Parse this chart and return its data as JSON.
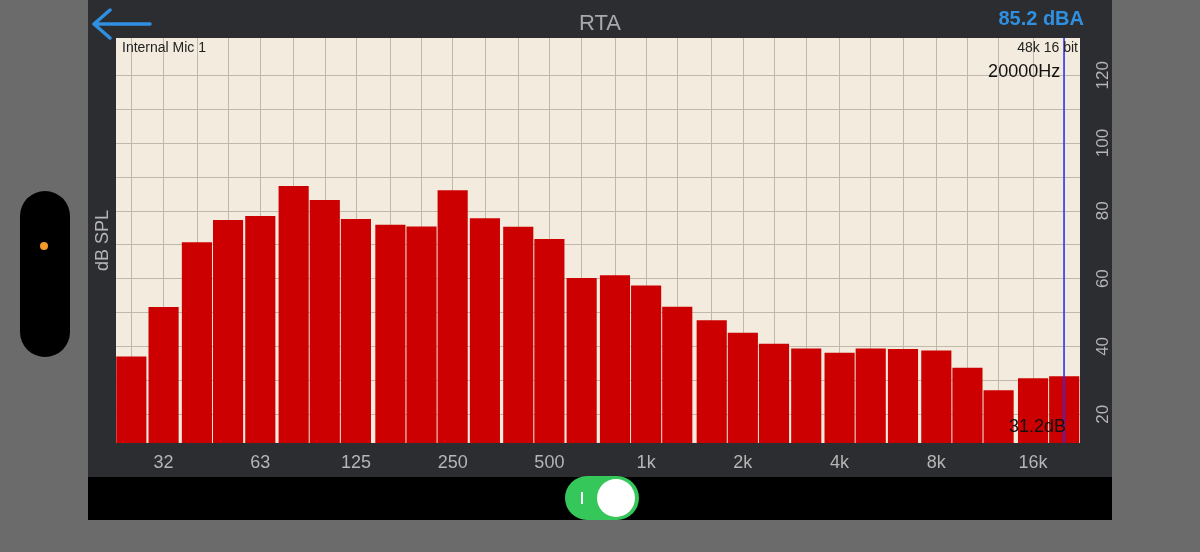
{
  "chart_data": {
    "type": "bar",
    "title": "RTA",
    "ylabel": "dB SPL",
    "x": [
      25,
      31.5,
      40,
      50,
      63,
      80,
      100,
      125,
      160,
      200,
      250,
      315,
      400,
      500,
      630,
      800,
      1000,
      1250,
      1600,
      2000,
      2500,
      3150,
      4000,
      5000,
      6300,
      8000,
      10000,
      12500,
      16000,
      20000
    ],
    "values": [
      37.0,
      51.6,
      70.7,
      77.3,
      78.5,
      87.3,
      83.2,
      77.6,
      75.9,
      75.4,
      86.1,
      77.8,
      75.3,
      71.7,
      60.2,
      61.0,
      58.0,
      51.7,
      47.7,
      44.0,
      40.8,
      39.4,
      38.1,
      39.4,
      39.2,
      38.8,
      33.7,
      27.1,
      30.6,
      31.2
    ],
    "color": "#cc0000",
    "log": "x",
    "xlim": [
      22.4,
      22400
    ],
    "xticks": [
      {
        "value": 25,
        "label": null
      },
      {
        "value": 31.5,
        "label": "32"
      },
      {
        "value": 40,
        "label": null
      },
      {
        "value": 50,
        "label": null
      },
      {
        "value": 63,
        "label": "63"
      },
      {
        "value": 80,
        "label": null
      },
      {
        "value": 100,
        "label": null
      },
      {
        "value": 125,
        "label": "125"
      },
      {
        "value": 160,
        "label": null
      },
      {
        "value": 200,
        "label": null
      },
      {
        "value": 250,
        "label": "250"
      },
      {
        "value": 315,
        "label": null
      },
      {
        "value": 400,
        "label": null
      },
      {
        "value": 500,
        "label": "500"
      },
      {
        "value": 630,
        "label": null
      },
      {
        "value": 800,
        "label": null
      },
      {
        "value": 1000,
        "label": "1k"
      },
      {
        "value": 1250,
        "label": null
      },
      {
        "value": 1600,
        "label": null
      },
      {
        "value": 2000,
        "label": "2k"
      },
      {
        "value": 2500,
        "label": null
      },
      {
        "value": 3150,
        "label": null
      },
      {
        "value": 4000,
        "label": "4k"
      },
      {
        "value": 5000,
        "label": null
      },
      {
        "value": 6300,
        "label": null
      },
      {
        "value": 8000,
        "label": "8k"
      },
      {
        "value": 10000,
        "label": null
      },
      {
        "value": 12500,
        "label": null
      },
      {
        "value": 16000,
        "label": "16k"
      },
      {
        "value": 20000,
        "label": null
      }
    ],
    "ylim": [
      11.5,
      131
    ],
    "yticks": [
      20,
      {
        "value": 30,
        "label": null
      },
      40,
      {
        "value": 50,
        "label": null
      },
      60,
      {
        "value": 70,
        "label": null
      },
      80,
      {
        "value": 90,
        "label": null
      },
      100,
      {
        "value": 110,
        "label": null
      },
      120
    ],
    "grid": true,
    "ref_lines": [
      {
        "axis": "x",
        "value": 20000,
        "label": "20000Hz",
        "color": "#2b2bff"
      }
    ],
    "annotations": [
      "Internal Mic 1",
      "48k 16 bit",
      "85.2 dBA",
      "31.2dB"
    ]
  }
}
